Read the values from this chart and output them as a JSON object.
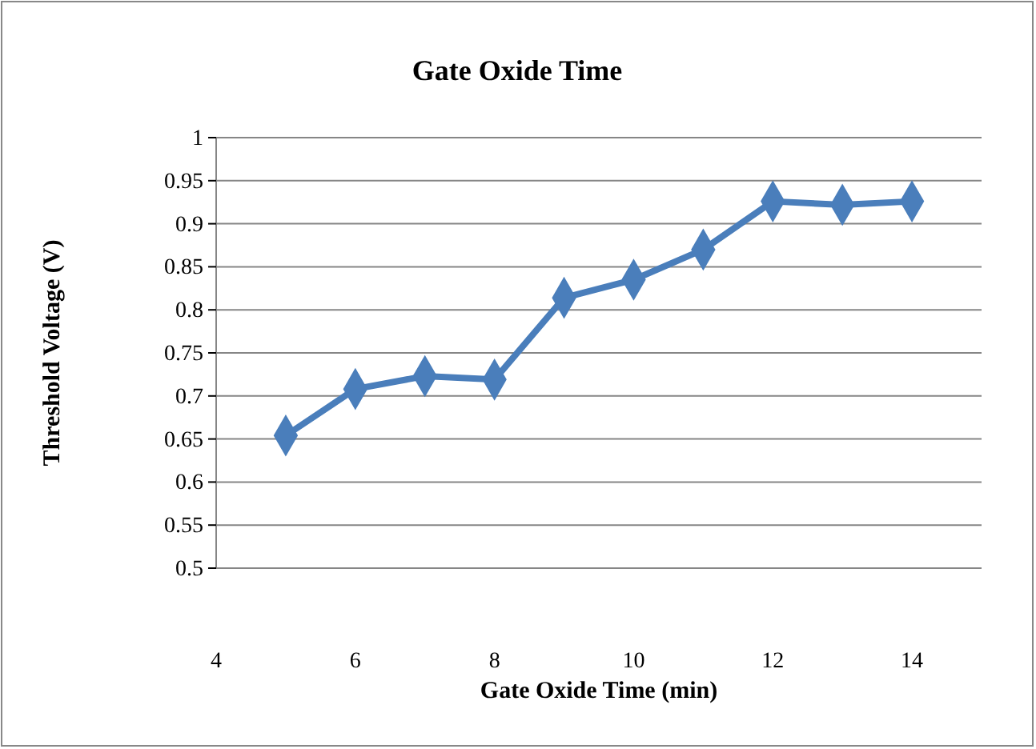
{
  "chart_data": {
    "type": "line",
    "title": "Gate Oxide Time",
    "xlabel": "Gate Oxide Time (min)",
    "ylabel": "Threshold Voltage (V)",
    "x": [
      5,
      6,
      7,
      8,
      9,
      10,
      11,
      12,
      13,
      14
    ],
    "series": [
      {
        "color": "#4a7ebb",
        "values": [
          0.654,
          0.708,
          0.723,
          0.719,
          0.814,
          0.835,
          0.87,
          0.926,
          0.922,
          0.926
        ]
      }
    ],
    "xlim": [
      4,
      15
    ],
    "xticks": [
      4,
      6,
      8,
      10,
      12,
      14
    ],
    "ylim": [
      0.5,
      1
    ],
    "yticks": [
      0.5,
      0.55,
      0.6,
      0.65,
      0.7,
      0.75,
      0.8,
      0.85,
      0.9,
      0.95,
      1
    ],
    "grid": "y",
    "marker": "diamond",
    "line_style": "solid"
  }
}
